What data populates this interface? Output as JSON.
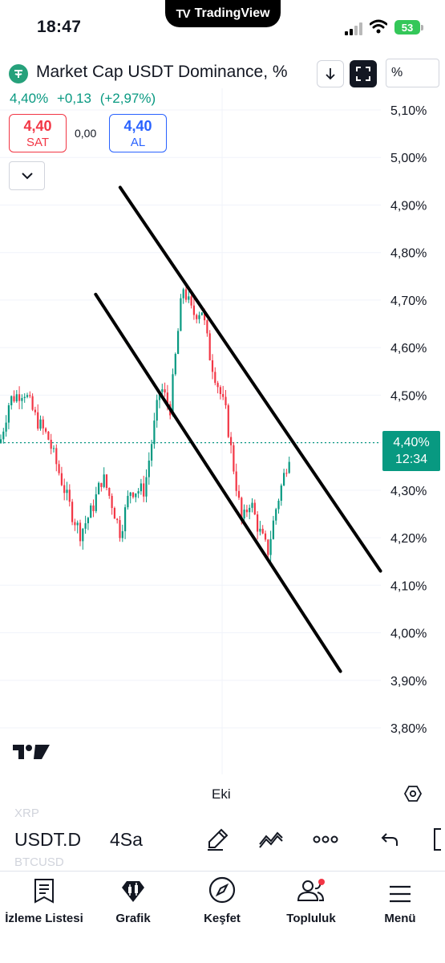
{
  "status_bar": {
    "time": "18:47",
    "app_pill": "TradingView",
    "battery": "53"
  },
  "header": {
    "symbol_title": "Market Cap USDT Dominance, %",
    "price": "4,40%",
    "change": "+0,13",
    "change_pct": "(+2,97%)",
    "scale_mode": "%",
    "sell": {
      "value": "4,40",
      "label": "SAT"
    },
    "spread": "0,00",
    "buy": {
      "value": "4,40",
      "label": "AL"
    }
  },
  "chart_data": {
    "type": "candlestick",
    "y_axis_ticks": [
      "5,10%",
      "5,00%",
      "4,90%",
      "4,80%",
      "4,70%",
      "4,60%",
      "4,50%",
      "4,40%",
      "4,30%",
      "4,20%",
      "4,10%",
      "4,00%",
      "3,90%",
      "3,80%"
    ],
    "ylim": [
      3.77,
      5.13
    ],
    "x_axis_label": "Eki",
    "last_price_tag": "4,40%",
    "countdown": "12:34",
    "last_price": 4.4,
    "trend_channel": {
      "upper": [
        [
          4.937,
          0.27
        ],
        [
          4.13,
          0.855
        ]
      ],
      "lower": [
        [
          4.712,
          0.215
        ],
        [
          3.919,
          0.765
        ]
      ]
    },
    "colors": {
      "up": "#089981",
      "down": "#f23645",
      "grid": "#f0f3fa"
    }
  },
  "toolbar": {
    "ghost_top": "XRP",
    "symbol": "USDT.D",
    "ghost_bottom": "BTCUSD",
    "interval": "4Sa"
  },
  "nav": {
    "watchlist": "İzleme Listesi",
    "chart": "Grafik",
    "explore": "Keşfet",
    "community": "Topluluk",
    "menu": "Menü"
  }
}
